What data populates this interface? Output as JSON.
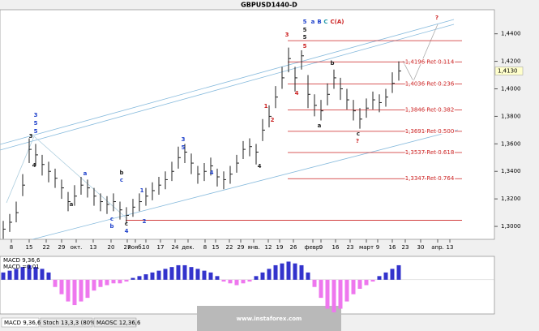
{
  "chart_data": {
    "type": "ohlc",
    "title": "GBPUSD1440-D",
    "high": [
      1.304,
      1.309,
      1.318,
      1.338,
      1.364,
      1.36,
      1.352,
      1.347,
      1.342,
      1.334,
      1.325,
      1.33,
      1.336,
      1.334,
      1.328,
      1.324,
      1.322,
      1.324,
      1.318,
      1.314,
      1.32,
      1.324,
      1.328,
      1.332,
      1.336,
      1.34,
      1.347,
      1.358,
      1.36,
      1.353,
      1.344,
      1.346,
      1.35,
      1.342,
      1.34,
      1.344,
      1.352,
      1.362,
      1.364,
      1.36,
      1.378,
      1.388,
      1.402,
      1.416,
      1.43,
      1.416,
      1.428,
      1.41,
      1.396,
      1.392,
      1.404,
      1.414,
      1.408,
      1.4,
      1.392,
      1.386,
      1.393,
      1.398,
      1.396,
      1.4,
      1.412,
      1.42
    ],
    "low": [
      1.291,
      1.296,
      1.303,
      1.322,
      1.346,
      1.344,
      1.337,
      1.332,
      1.328,
      1.32,
      1.311,
      1.315,
      1.323,
      1.321,
      1.315,
      1.311,
      1.309,
      1.311,
      1.305,
      1.302,
      1.307,
      1.311,
      1.315,
      1.319,
      1.323,
      1.327,
      1.333,
      1.342,
      1.346,
      1.338,
      1.331,
      1.333,
      1.337,
      1.329,
      1.327,
      1.331,
      1.339,
      1.349,
      1.351,
      1.345,
      1.362,
      1.372,
      1.386,
      1.4,
      1.412,
      1.398,
      1.414,
      1.386,
      1.38,
      1.377,
      1.388,
      1.4,
      1.392,
      1.385,
      1.377,
      1.371,
      1.379,
      1.385,
      1.383,
      1.387,
      1.397,
      1.406
    ],
    "close": [
      1.298,
      1.303,
      1.31,
      1.33,
      1.356,
      1.352,
      1.345,
      1.34,
      1.335,
      1.328,
      1.318,
      1.322,
      1.33,
      1.328,
      1.322,
      1.318,
      1.316,
      1.318,
      1.312,
      1.308,
      1.314,
      1.318,
      1.322,
      1.326,
      1.33,
      1.334,
      1.34,
      1.35,
      1.354,
      1.346,
      1.338,
      1.34,
      1.344,
      1.336,
      1.334,
      1.338,
      1.346,
      1.356,
      1.358,
      1.354,
      1.37,
      1.38,
      1.394,
      1.408,
      1.422,
      1.408,
      1.424,
      1.396,
      1.388,
      1.384,
      1.396,
      1.408,
      1.4,
      1.392,
      1.384,
      1.378,
      1.386,
      1.392,
      1.39,
      1.394,
      1.404,
      1.413
    ],
    "color": "#222222",
    "ylim": [
      1.2906,
      1.4575
    ],
    "yticks": [
      {
        "value": 1.44,
        "label": "1,4400"
      },
      {
        "value": 1.42,
        "label": "1,4200"
      },
      {
        "value": 1.4,
        "label": "1,4000"
      },
      {
        "value": 1.38,
        "label": "1,3800"
      },
      {
        "value": 1.36,
        "label": "1,3600"
      },
      {
        "value": 1.34,
        "label": "1,3400"
      },
      {
        "value": 1.32,
        "label": "1,3200"
      },
      {
        "value": 1.3,
        "label": "1,3000"
      }
    ],
    "last_price": {
      "value": 1.413,
      "label": "1,4130"
    },
    "levels": [
      {
        "value": 1.4196,
        "label": "1,4196 Ret 0.114"
      },
      {
        "value": 1.4036,
        "label": "1,4036 Ret 0.236"
      },
      {
        "value": 1.3846,
        "label": "1,3846 Ret 0.382"
      },
      {
        "value": 1.3691,
        "label": "1,3691 Ret 0.500"
      },
      {
        "value": 1.3537,
        "label": "1,3537 Ret 0.618"
      },
      {
        "value": 1.3347,
        "label": "1,3347 Ret 0.764"
      }
    ],
    "extra_levels": [
      1.435,
      1.3045
    ],
    "level_color": "#cc2222",
    "xlabels": [
      "8",
      "15",
      "22",
      "29",
      "окт.",
      "13",
      "20",
      "27",
      "нояб.",
      "10",
      "17",
      "24",
      "дек.",
      "8",
      "15",
      "22",
      "29",
      "янв.",
      "12",
      "19",
      "26",
      "февр.",
      "9",
      "16",
      "23",
      "март",
      "9",
      "16",
      "23",
      "30",
      "апр.",
      "13"
    ],
    "annotations": [
      {
        "text": "5",
        "color": "#2244cc"
      },
      {
        "text": "a",
        "color": "#2244cc"
      },
      {
        "text": "B",
        "color": "#2244cc"
      },
      {
        "text": "C",
        "color": "#2299aa"
      },
      {
        "text": "C(A)",
        "color": "#cc2222"
      },
      {
        "text": "?",
        "color": "#cc2222"
      },
      {
        "text": "?",
        "color": "#cc2222"
      },
      {
        "text": "3",
        "color": "#2244cc"
      },
      {
        "text": "5",
        "color": "#2244cc"
      },
      {
        "text": "5",
        "color": "#2244cc"
      },
      {
        "text": "3",
        "color": "#222222"
      },
      {
        "text": "4",
        "color": "#222222"
      },
      {
        "text": "a",
        "color": "#222222"
      },
      {
        "text": "a",
        "color": "#2244cc"
      },
      {
        "text": "b",
        "color": "#222222"
      },
      {
        "text": "c",
        "color": "#2244cc"
      },
      {
        "text": "c",
        "color": "#2244cc"
      },
      {
        "text": "b",
        "color": "#2244cc"
      },
      {
        "text": "c",
        "color": "#222222"
      },
      {
        "text": "4",
        "color": "#2244cc"
      },
      {
        "text": "1",
        "color": "#2244cc"
      },
      {
        "text": "2",
        "color": "#2244cc"
      },
      {
        "text": "3",
        "color": "#2244cc"
      },
      {
        "text": "5",
        "color": "#2244cc"
      },
      {
        "text": "4",
        "color": "#2244cc"
      },
      {
        "text": "4",
        "color": "#222222"
      },
      {
        "text": "1",
        "color": "#cc2222"
      },
      {
        "text": "2",
        "color": "#cc2222"
      },
      {
        "text": "3",
        "color": "#cc2222"
      },
      {
        "text": "5",
        "color": "#222222"
      },
      {
        "text": "5",
        "color": "#222222"
      },
      {
        "text": "5",
        "color": "#cc2222"
      },
      {
        "text": "4",
        "color": "#cc2222"
      },
      {
        "text": "a",
        "color": "#222222"
      },
      {
        "text": "b",
        "color": "#222222"
      },
      {
        "text": "c",
        "color": "#222222"
      }
    ],
    "macd": {
      "title": "MACD 9,36,6",
      "readout": "MACD =0,01",
      "values": [
        0.004,
        0.005,
        0.006,
        0.007,
        0.008,
        0.007,
        0.006,
        0.004,
        -0.004,
        -0.008,
        -0.012,
        -0.014,
        -0.012,
        -0.01,
        -0.006,
        -0.004,
        -0.003,
        -0.002,
        -0.002,
        -0.001,
        0.001,
        0.002,
        0.003,
        0.004,
        0.005,
        0.006,
        0.007,
        0.008,
        0.008,
        0.007,
        0.006,
        0.005,
        0.004,
        0.002,
        -0.001,
        -0.002,
        -0.003,
        -0.002,
        -0.001,
        0.002,
        0.004,
        0.006,
        0.008,
        0.009,
        0.01,
        0.009,
        0.008,
        0.004,
        -0.004,
        -0.01,
        -0.016,
        -0.018,
        -0.016,
        -0.012,
        -0.008,
        -0.005,
        -0.003,
        -0.001,
        0.002,
        0.004,
        0.006,
        0.008
      ],
      "up_color": "#3333cc",
      "down_color": "#ee77ee",
      "ylim": [
        -0.018,
        0.012
      ]
    },
    "tabs": [
      "MACD 9,36,6",
      "Stoch 13,3,3 (80%-20%)",
      "MAOSC 12,36,6"
    ],
    "watermark": "www.instaforex.com"
  }
}
